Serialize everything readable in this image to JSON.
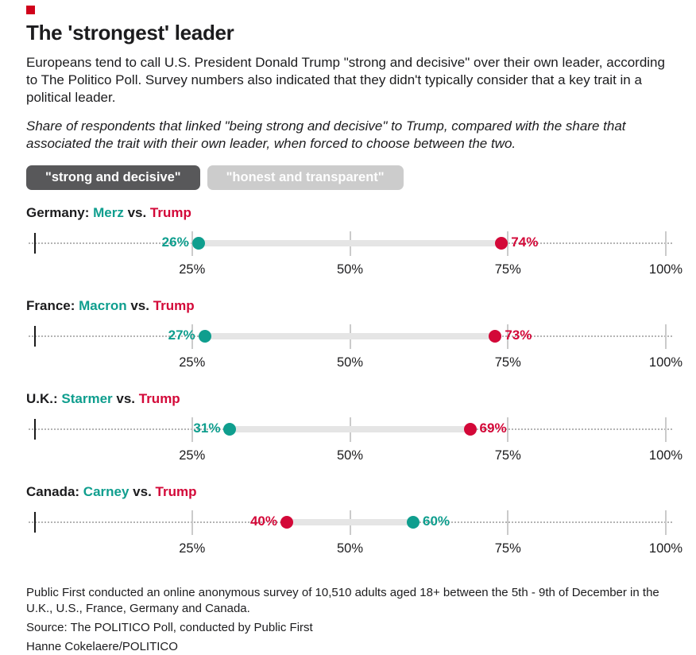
{
  "brand": {
    "mark_color": "#d0021b"
  },
  "header": {
    "title": "The 'strongest' leader",
    "intro": "Europeans tend to call U.S. President Donald Trump \"strong and decisive\" over their own leader, according to The Politico Poll. Survey numbers also indicated that they didn't typically consider that a key trait in a political leader.",
    "note": "Share of respondents that linked \"being strong and decisive\" to Trump, compared with the share that associated the trait with their own leader, when forced to choose between the two."
  },
  "toggles": [
    {
      "label": "\"strong and decisive\"",
      "selected": true
    },
    {
      "label": "\"honest and transparent\"",
      "selected": false
    }
  ],
  "chart_data": {
    "type": "dumbbell",
    "xlim": [
      0,
      100
    ],
    "axis_ticks": [
      {
        "value": 25,
        "label": "25%"
      },
      {
        "value": 50,
        "label": "50%"
      },
      {
        "value": 75,
        "label": "75%"
      },
      {
        "value": 100,
        "label": "100%"
      }
    ],
    "colors": {
      "leader": "#0f9e8e",
      "trump": "#d30838",
      "bar": "#e5e5e5",
      "grid": "#cbcbcb",
      "dotted_line": "#b4b4b4"
    },
    "legend_note": "teal = own leader, red = Trump",
    "rows": [
      {
        "country_label": "Germany:",
        "leader_name": "Merz",
        "vs_label": "vs.",
        "opponent_name": "Trump",
        "leader_value": 26,
        "leader_value_label": "26%",
        "trump_value": 74,
        "trump_value_label": "74%"
      },
      {
        "country_label": "France:",
        "leader_name": "Macron",
        "vs_label": "vs.",
        "opponent_name": "Trump",
        "leader_value": 27,
        "leader_value_label": "27%",
        "trump_value": 73,
        "trump_value_label": "73%"
      },
      {
        "country_label": "U.K.:",
        "leader_name": "Starmer",
        "vs_label": "vs.",
        "opponent_name": "Trump",
        "leader_value": 31,
        "leader_value_label": "31%",
        "trump_value": 69,
        "trump_value_label": "69%"
      },
      {
        "country_label": "Canada:",
        "leader_name": "Carney",
        "vs_label": "vs.",
        "opponent_name": "Trump",
        "leader_value": 60,
        "leader_value_label": "60%",
        "trump_value": 40,
        "trump_value_label": "40%"
      }
    ]
  },
  "footer": {
    "methodology": "Public First conducted an online anonymous survey of 10,510 adults aged 18+ between the 5th - 9th of December in the U.K., U.S., France, Germany and Canada.",
    "source": "Source: The POLITICO Poll, conducted by Public First",
    "byline": "Hanne Cokelaere/POLITICO"
  }
}
